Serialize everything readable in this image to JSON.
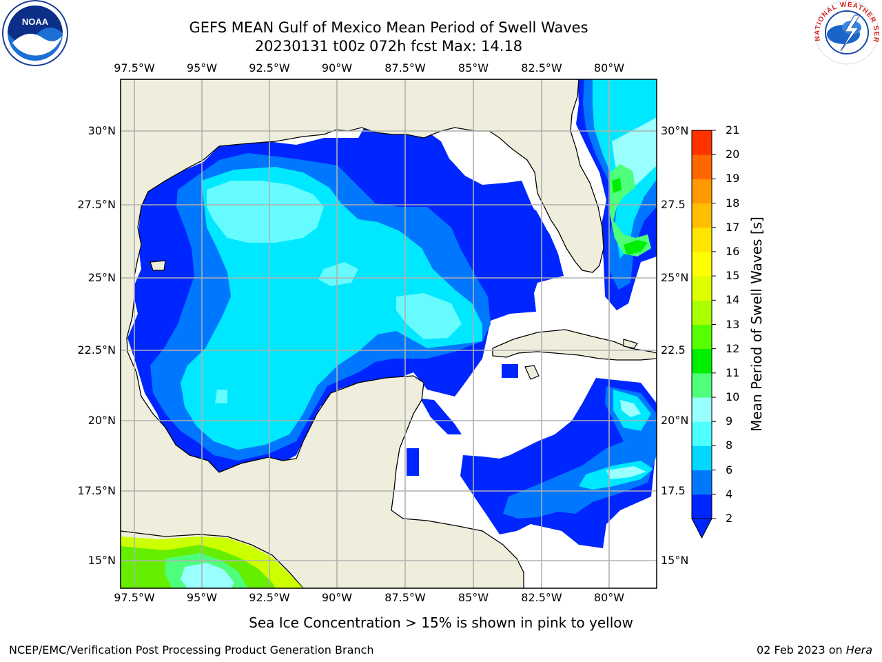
{
  "title_line1": "GEFS MEAN Gulf of Mexico Mean Period of Swell Waves",
  "title_line2": "20230131 t00z 072h fcst   Max: 14.18",
  "longitude_ticks": [
    "97.5°W",
    "95°W",
    "92.5°W",
    "90°W",
    "87.5°W",
    "85°W",
    "82.5°W",
    "80°W"
  ],
  "latitude_ticks_left": [
    "30°N",
    "27.5°N",
    "25°N",
    "22.5°N",
    "20°N",
    "17.5°N",
    "15°N"
  ],
  "latitude_ticks_right": [
    "30°N",
    "27.5",
    "25°N",
    "22.5",
    "20°N",
    "17.5",
    "15°N"
  ],
  "colorbar": {
    "label": "Mean Period of Swell Waves [s]",
    "levels": [
      "2",
      "4",
      "6",
      "8",
      "9",
      "10",
      "11",
      "12",
      "13",
      "14",
      "15",
      "16",
      "17",
      "18",
      "19",
      "20",
      "21"
    ],
    "colors": [
      "#0026ff",
      "#0077ff",
      "#00d8ff",
      "#4dffff",
      "#99ffff",
      "#4dff7a",
      "#00ee00",
      "#55ff00",
      "#aaff00",
      "#ddff00",
      "#ffff00",
      "#ffe600",
      "#ffbf00",
      "#ff9900",
      "#ff6600",
      "#ff3300",
      "#ff0000"
    ]
  },
  "map_colors": {
    "land": "#efeedc",
    "ocean_no_swell": "#ffffff",
    "grid": "#b0b0b0",
    "coast": "#000000"
  },
  "logos": {
    "noaa_text": "NOAA",
    "nws_text": "NATIONAL WEATHER SERVICE"
  },
  "note": "Sea Ice Concentration > 15% is shown in pink to yellow",
  "footer_left": "NCEP/EMC/Verification Post Processing Product Generation Branch",
  "footer_date": "02 Feb 2023 on ",
  "footer_host": "Hera"
}
